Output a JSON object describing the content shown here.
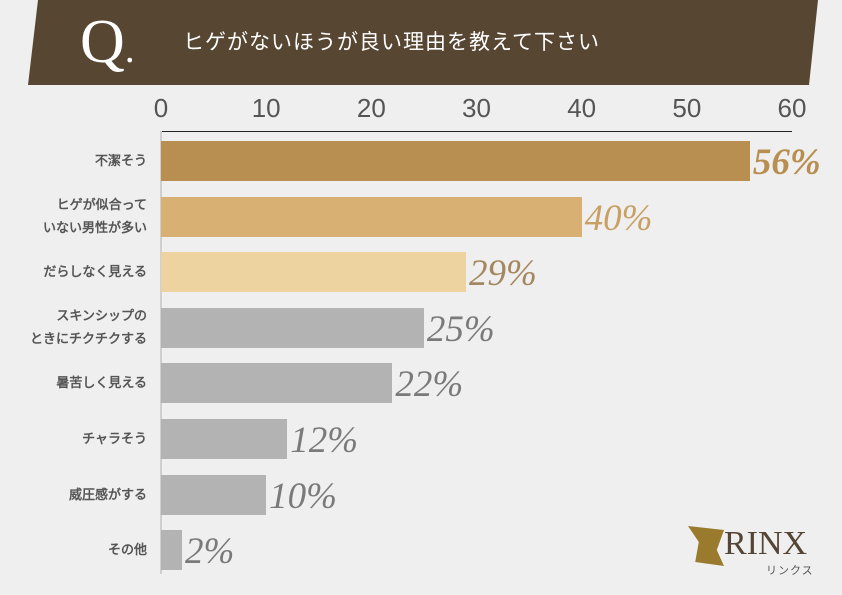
{
  "header": {
    "q_mark": "Q",
    "q_dot": ".",
    "title": "ヒゲがないほうが良い理由を教えて下さい"
  },
  "logo": {
    "brand": "RINX",
    "kana": "リンクス"
  },
  "chart_data": {
    "type": "bar",
    "orientation": "horizontal",
    "title": "ヒゲがないほうが良い理由を教えて下さい",
    "xlim": [
      0,
      60
    ],
    "xticks": [
      "0",
      "10",
      "20",
      "30",
      "40",
      "50",
      "60"
    ],
    "categories": [
      "不潔そう",
      "ヒゲが似合っていない男性が多い",
      "だらしなく見える",
      "スキンシップのときにチクチクする",
      "暑苦しく見える",
      "チャラそう",
      "威圧感がする",
      "その他"
    ],
    "values": [
      56,
      40,
      29,
      25,
      22,
      12,
      10,
      2
    ],
    "unit": "%",
    "grid": false,
    "legend": null
  },
  "rows": [
    {
      "label1": "不潔そう",
      "label2": "",
      "value": 56,
      "text": "56%",
      "color": "#b98f51",
      "textColor": "#b98f51"
    },
    {
      "label1": "ヒゲが似合って",
      "label2": "いない男性が多い",
      "value": 40,
      "text": "40%",
      "color": "#d8b073",
      "textColor": "#c9a063"
    },
    {
      "label1": "だらしなく見える",
      "label2": "",
      "value": 29,
      "text": "29%",
      "color": "#edd3a0",
      "textColor": "#a3875e"
    },
    {
      "label1": "スキンシップの",
      "label2": "ときにチクチクする",
      "value": 25,
      "text": "25%",
      "color": "#b4b3b3",
      "textColor": "#7a7a7a"
    },
    {
      "label1": "暑苦しく見える",
      "label2": "",
      "value": 22,
      "text": "22%",
      "color": "#b4b3b3",
      "textColor": "#7a7a7a"
    },
    {
      "label1": "チャラそう",
      "label2": "",
      "value": 12,
      "text": "12%",
      "color": "#b4b3b3",
      "textColor": "#7a7a7a"
    },
    {
      "label1": "威圧感がする",
      "label2": "",
      "value": 10,
      "text": "10%",
      "color": "#b4b3b3",
      "textColor": "#7a7a7a"
    },
    {
      "label1": "その他",
      "label2": "",
      "value": 2,
      "text": "2%",
      "color": "#b4b3b3",
      "textColor": "#7a7a7a"
    }
  ]
}
